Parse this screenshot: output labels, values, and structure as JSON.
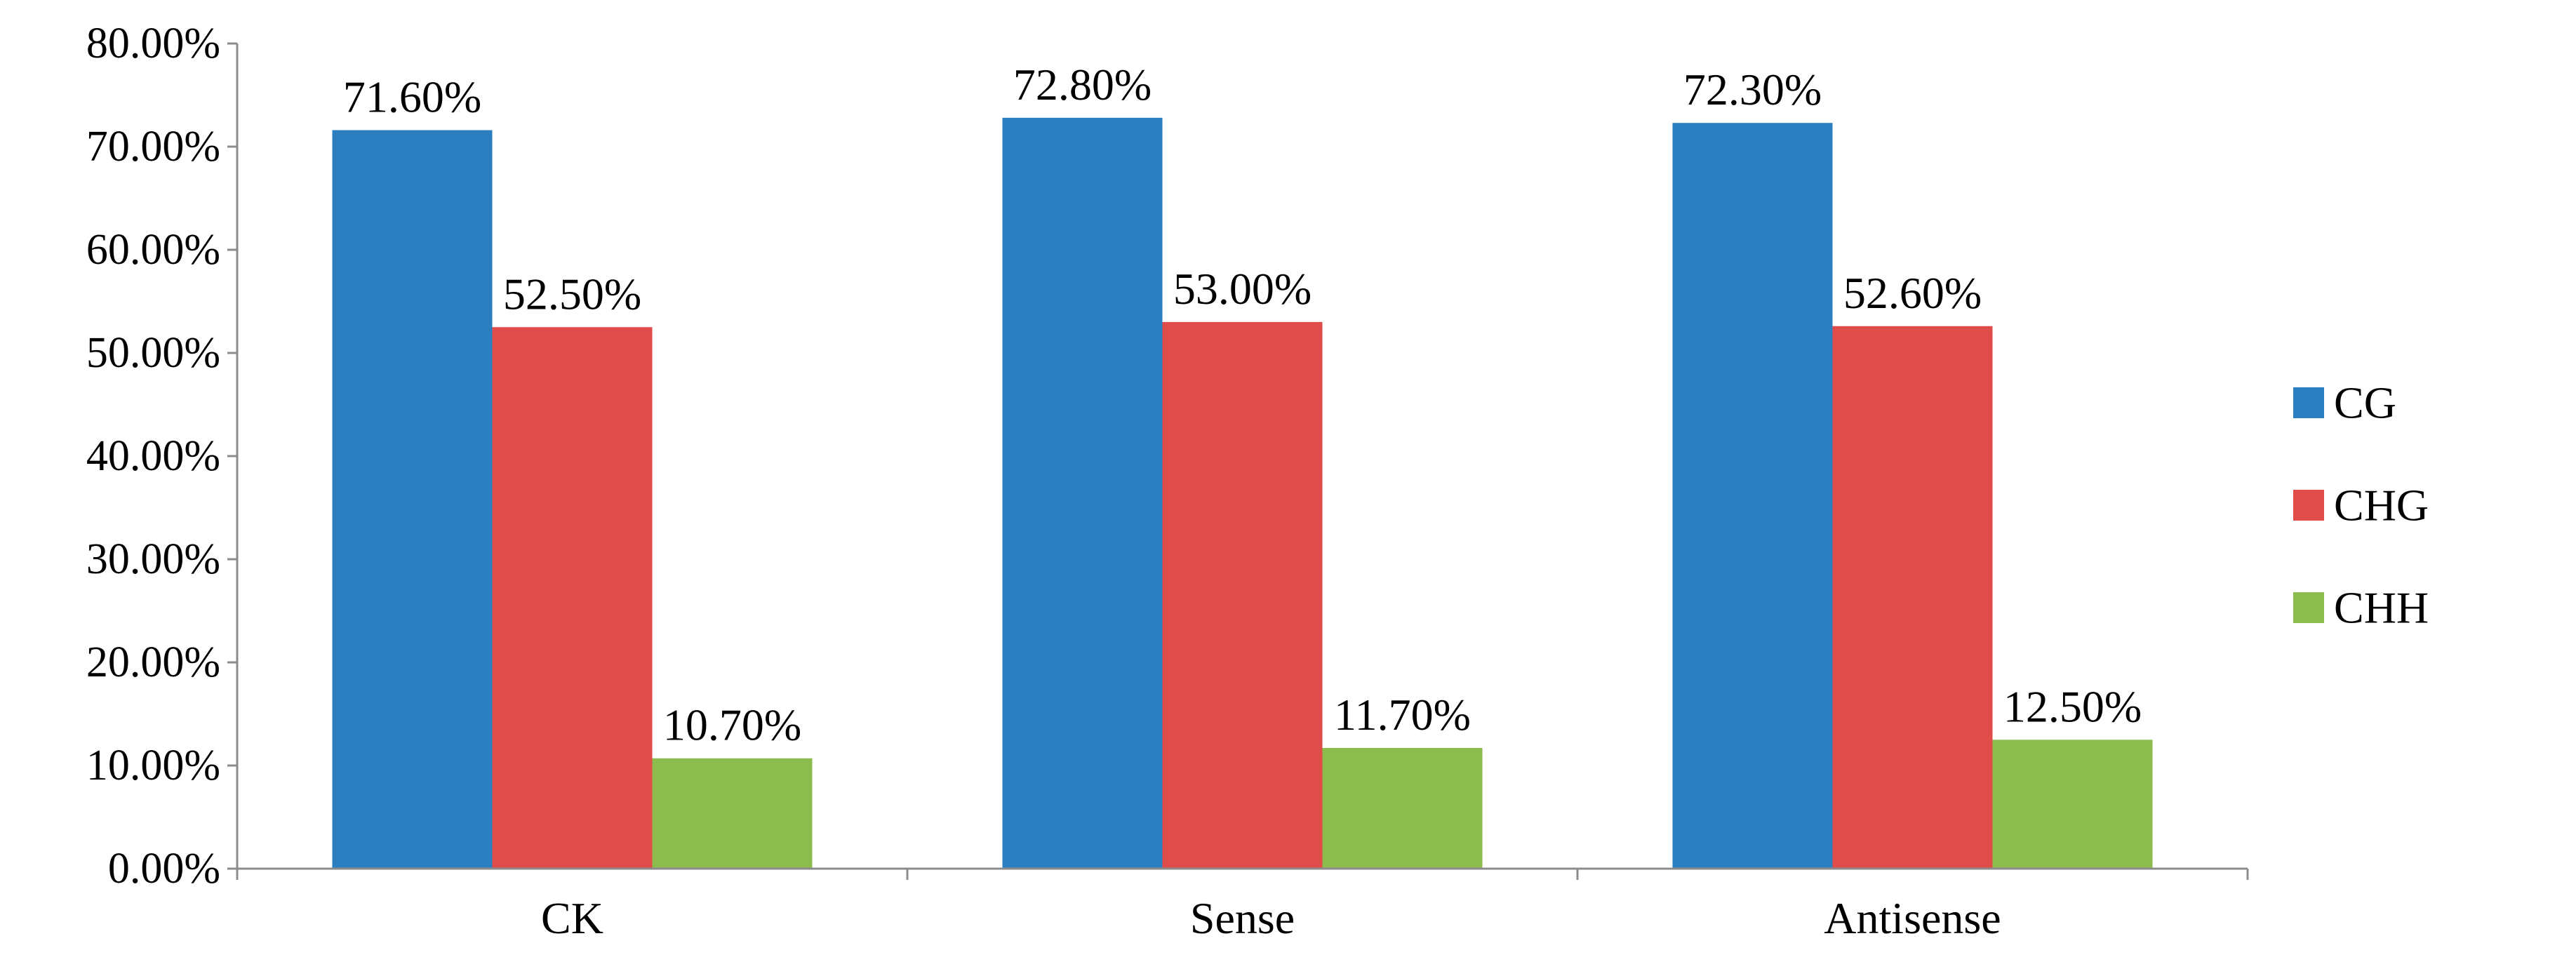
{
  "chart_data": {
    "type": "bar",
    "categories": [
      "CK",
      "Sense",
      "Antisense"
    ],
    "series": [
      {
        "name": "CG",
        "color": "#2b7fc1",
        "values": [
          71.6,
          72.8,
          72.3
        ],
        "labels": [
          "71.60%",
          "72.80%",
          "72.30%"
        ]
      },
      {
        "name": "CHG",
        "color": "#df4c4a",
        "values": [
          52.5,
          53.0,
          52.6
        ],
        "labels": [
          "52.50%",
          "53.00%",
          "52.60%"
        ]
      },
      {
        "name": "CHH",
        "color": "#8cbc4e",
        "values": [
          10.7,
          11.7,
          12.5
        ],
        "labels": [
          "10.70%",
          "11.70%",
          "12.50%"
        ]
      }
    ],
    "y_ticks": [
      "0.00%",
      "10.00%",
      "20.00%",
      "30.00%",
      "40.00%",
      "50.00%",
      "60.00%",
      "70.00%",
      "80.00%"
    ],
    "ylim": [
      0,
      80
    ],
    "title": "",
    "xlabel": "",
    "ylabel": "",
    "grid": false,
    "legend_position": "right"
  }
}
